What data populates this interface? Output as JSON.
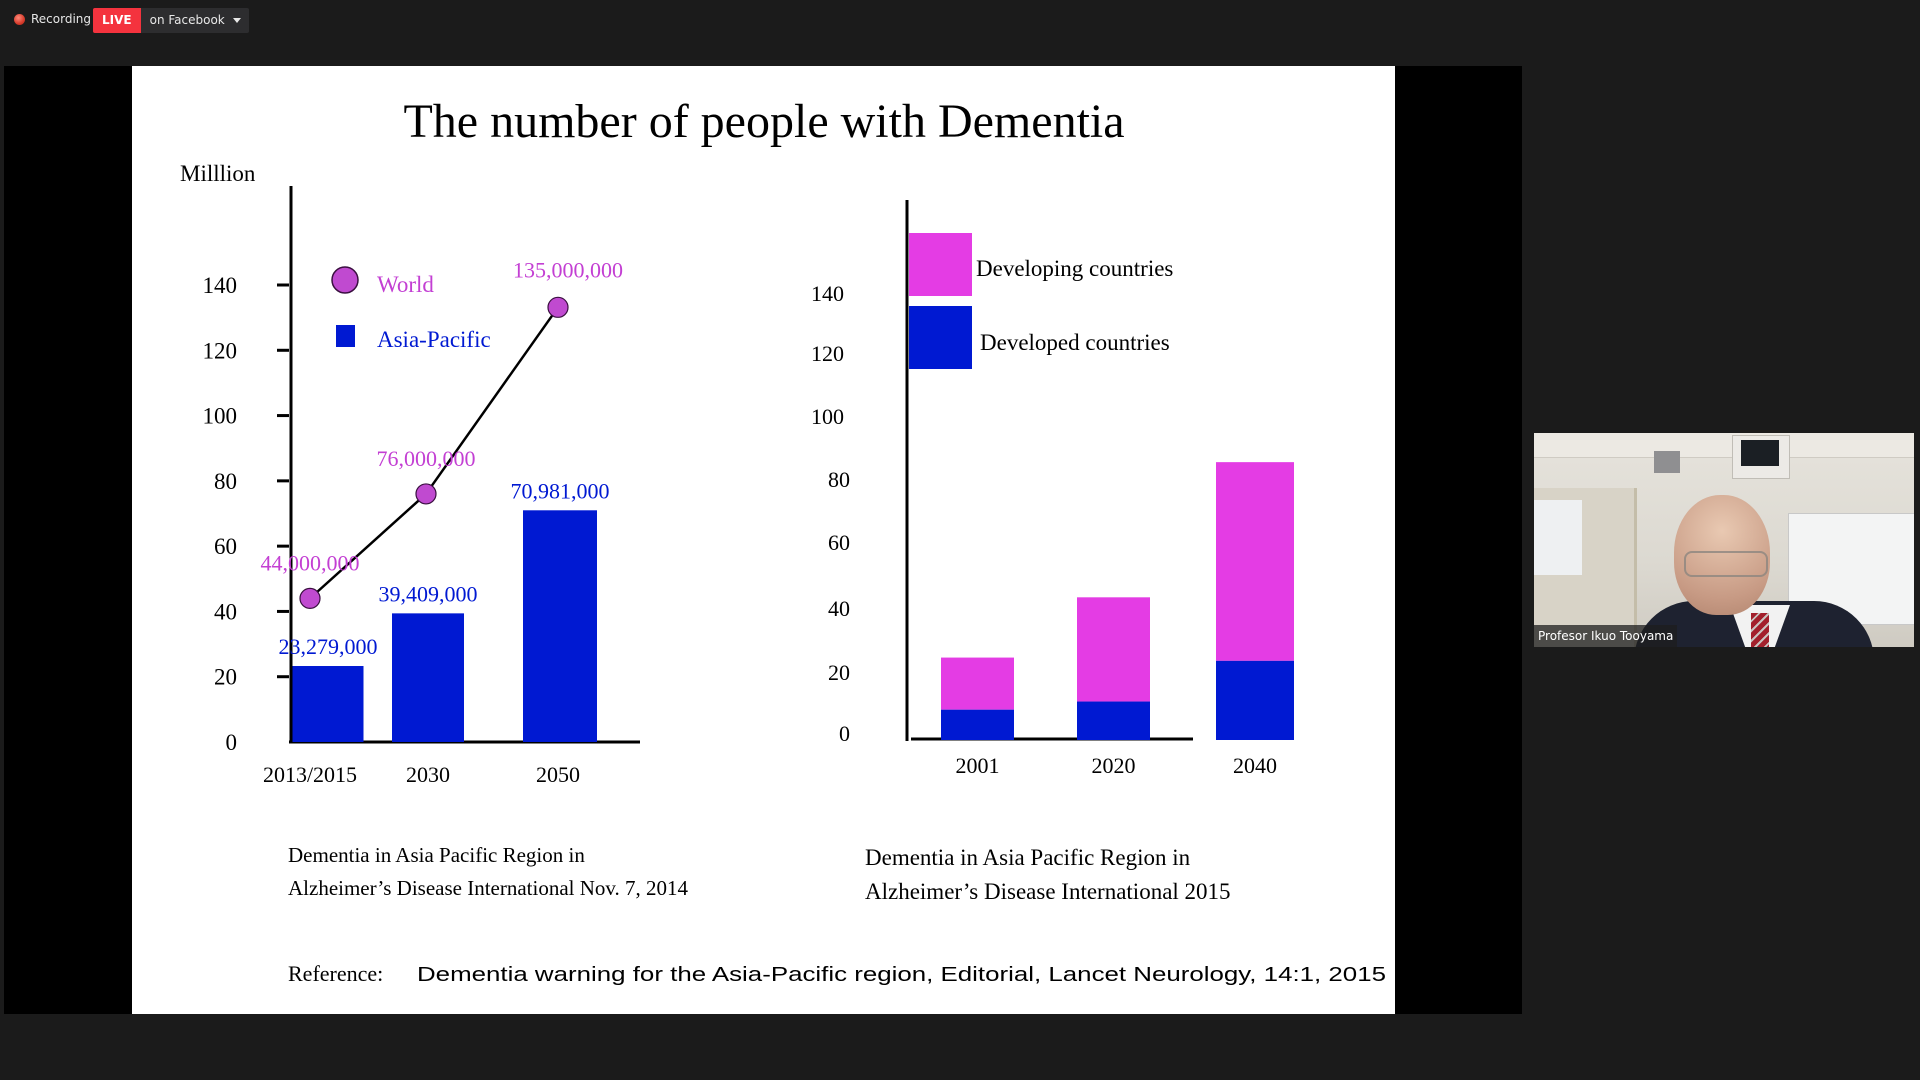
{
  "topbar": {
    "recording_label": "Recording",
    "live_badge": "LIVE",
    "live_destination": "on Facebook"
  },
  "slide": {
    "title": "The number of people with Dementia",
    "caption_left": [
      "Dementia in Asia Pacific Region in",
      "Alzheimer’s Disease International Nov. 7, 2014"
    ],
    "caption_right": [
      "Dementia in Asia Pacific Region in",
      "Alzheimer’s Disease International 2015"
    ],
    "reference_prefix": "Reference:",
    "reference_text": "Dementia warning for the Asia-Pacific region, Editorial, Lancet Neurology, 14:1, 2015"
  },
  "video": {
    "participant_name": "Profesor Ikuo Tooyama"
  },
  "colors": {
    "world": "#c04ad0",
    "world_label": "#c33fd3",
    "asia_pacific": "#0019d2",
    "developing": "#e43ce4",
    "developed": "#0019d2"
  },
  "chart_data": [
    {
      "type": "bar",
      "title": "",
      "ylabel": "Milllion",
      "xlabel": "",
      "ylim": [
        0,
        140
      ],
      "yticks": [
        0,
        20,
        40,
        60,
        80,
        100,
        120,
        140
      ],
      "categories": [
        "2013/2015",
        "2030",
        "2050"
      ],
      "legend_position": "top-left",
      "series": [
        {
          "name": "World",
          "kind": "line",
          "values": [
            44,
            76,
            135
          ],
          "labels": [
            "44,000,000",
            "76,000,000",
            "135,000,000"
          ]
        },
        {
          "name": "Asia-Pacific",
          "kind": "bar",
          "values": [
            23.279,
            39.409,
            70.981
          ],
          "labels": [
            "23,279,000",
            "39,409,000",
            "70,981,000"
          ]
        }
      ]
    },
    {
      "type": "bar",
      "stacked": true,
      "title": "",
      "xlabel": "",
      "ylabel": "",
      "ylim": [
        0,
        140
      ],
      "yticks": [
        0,
        20,
        40,
        60,
        80,
        100,
        120,
        140
      ],
      "categories": [
        "2001",
        "2020",
        "2040"
      ],
      "legend_position": "top-left",
      "series": [
        {
          "name": "Developed countries",
          "values": [
            9,
            11.5,
            24
          ]
        },
        {
          "name": "Developing countries",
          "values": [
            16,
            32,
            61
          ]
        }
      ]
    }
  ]
}
